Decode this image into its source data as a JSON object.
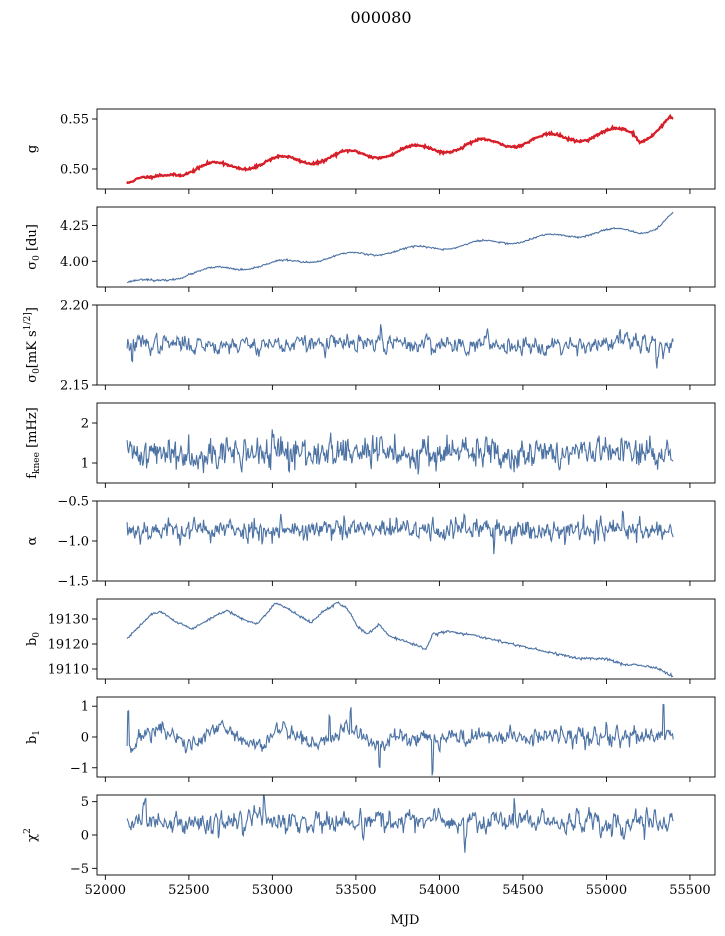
{
  "figure": {
    "title": "000080"
  },
  "chart_data": {
    "type": "line",
    "title": "000080",
    "xlabel": "MJD",
    "xlim": [
      51950,
      55650
    ],
    "x_ticks": [
      52000,
      52500,
      53000,
      53500,
      54000,
      54500,
      55000,
      55500
    ],
    "x_range": [
      52130,
      55400
    ],
    "colors": {
      "series": "#4c72a4",
      "highlight": "#ff0000"
    },
    "panels": [
      {
        "id": "g",
        "ylabel": "g",
        "ylim": [
          0.48,
          0.56
        ],
        "y_ticks": [
          0.5,
          0.55
        ],
        "y_tick_labels": [
          "0.50",
          "0.55"
        ],
        "model": "wave",
        "base": [
          [
            52100,
            0.487
          ],
          [
            52270,
            0.487
          ],
          [
            52400,
            0.498
          ],
          [
            53000,
            0.507
          ],
          [
            54000,
            0.521
          ],
          [
            55000,
            0.535
          ],
          [
            55150,
            0.537
          ],
          [
            55200,
            0.53
          ],
          [
            55380,
            0.55
          ],
          [
            55400,
            0.547
          ]
        ],
        "amplitude": 0.005,
        "period": 400,
        "phase": 52550,
        "noise": 0.0006,
        "seed": 11,
        "overlay": "red"
      },
      {
        "id": "s0",
        "ylabel": "σ0 [du]",
        "ylim": [
          3.82,
          4.38
        ],
        "y_ticks": [
          4.0,
          4.25
        ],
        "y_tick_labels": [
          "4.00",
          "4.25"
        ],
        "model": "wave",
        "base": [
          [
            52130,
            3.86
          ],
          [
            52300,
            3.85
          ],
          [
            52500,
            3.92
          ],
          [
            53000,
            3.98
          ],
          [
            53600,
            4.06
          ],
          [
            54500,
            4.15
          ],
          [
            55000,
            4.21
          ],
          [
            55200,
            4.21
          ],
          [
            55300,
            4.24
          ],
          [
            55400,
            4.33
          ]
        ],
        "amplitude": 0.02,
        "period": 400,
        "phase": 52550,
        "noise": 0.003,
        "seed": 23
      },
      {
        "id": "sw",
        "ylabel": "σ0[mK s^1/2]",
        "ylim": [
          2.15,
          2.2
        ],
        "y_ticks": [
          2.15,
          2.2
        ],
        "y_tick_labels": [
          "2.15",
          "2.20"
        ],
        "model": "noise",
        "mean": 2.1755,
        "noise": 0.0035,
        "smooth": 0.55,
        "seed": 37,
        "events": [
          [
            52160,
            -0.012
          ],
          [
            55300,
            -0.01
          ],
          [
            55080,
            0.01
          ],
          [
            53650,
            0.01
          ]
        ]
      },
      {
        "id": "fk",
        "ylabel": "fknee [mHz]",
        "ylim": [
          0.5,
          2.5
        ],
        "y_ticks": [
          1,
          2
        ],
        "y_tick_labels": [
          "1",
          "2"
        ],
        "model": "noise",
        "mean": 1.25,
        "noise": 0.16,
        "smooth": 0.25,
        "seed": 41,
        "events": [
          [
            53000,
            0.5
          ],
          [
            53600,
            0.45
          ],
          [
            54950,
            0.45
          ],
          [
            53100,
            -0.55
          ]
        ]
      },
      {
        "id": "al",
        "ylabel": "α",
        "ylim": [
          -1.5,
          -0.5
        ],
        "y_ticks": [
          -1.5,
          -1.0,
          -0.5
        ],
        "y_tick_labels": [
          "−1.5",
          "−1.0",
          "−0.5"
        ],
        "model": "noise",
        "mean": -0.86,
        "noise": 0.06,
        "smooth": 0.3,
        "seed": 53,
        "events": [
          [
            54150,
            0.22
          ],
          [
            55100,
            0.2
          ],
          [
            54330,
            -0.22
          ],
          [
            53050,
            0.15
          ]
        ]
      },
      {
        "id": "b0",
        "ylabel": "b0",
        "ylim": [
          19106,
          19138
        ],
        "y_ticks": [
          19110,
          19120,
          19130
        ],
        "y_tick_labels": [
          "19110",
          "19120",
          "19130"
        ],
        "model": "points",
        "points": [
          [
            52130,
            19122
          ],
          [
            52200,
            19127
          ],
          [
            52280,
            19132
          ],
          [
            52330,
            19133
          ],
          [
            52420,
            19129
          ],
          [
            52520,
            19126
          ],
          [
            52650,
            19131
          ],
          [
            52730,
            19133.5
          ],
          [
            52820,
            19130
          ],
          [
            52910,
            19128
          ],
          [
            53020,
            19136.5
          ],
          [
            53120,
            19133
          ],
          [
            53230,
            19128.5
          ],
          [
            53300,
            19133
          ],
          [
            53390,
            19136.5
          ],
          [
            53450,
            19134
          ],
          [
            53510,
            19127
          ],
          [
            53570,
            19124
          ],
          [
            53640,
            19128
          ],
          [
            53700,
            19123
          ],
          [
            53800,
            19121
          ],
          [
            53920,
            19118
          ],
          [
            53960,
            19124
          ],
          [
            54050,
            19125
          ],
          [
            54200,
            19123.5
          ],
          [
            54400,
            19120.5
          ],
          [
            54600,
            19117.5
          ],
          [
            54800,
            19114.5
          ],
          [
            55000,
            19114
          ],
          [
            55100,
            19112
          ],
          [
            55200,
            19111.5
          ],
          [
            55300,
            19110.5
          ],
          [
            55400,
            19107
          ]
        ],
        "noise": 0.25,
        "seed": 61
      },
      {
        "id": "b1",
        "ylabel": "b1",
        "ylim": [
          -1.3,
          1.3
        ],
        "y_ticks": [
          -1,
          0,
          1
        ],
        "y_tick_labels": [
          "−1",
          "0",
          "1"
        ],
        "model": "noise",
        "mean": 0.0,
        "noise": 0.14,
        "smooth": 0.4,
        "seed": 71,
        "wave": {
          "amplitude": 0.25,
          "period": 380,
          "phase": 52600,
          "until": 53700
        },
        "events": [
          [
            52135,
            1.15
          ],
          [
            53960,
            -1.1
          ],
          [
            53640,
            -0.8
          ],
          [
            55340,
            0.95
          ],
          [
            55000,
            0.55
          ],
          [
            53470,
            0.75
          ],
          [
            53340,
            0.7
          ]
        ]
      },
      {
        "id": "chi",
        "ylabel": "χ^2",
        "ylim": [
          -6,
          6
        ],
        "y_ticks": [
          -5,
          0,
          5
        ],
        "y_tick_labels": [
          "−5",
          "0",
          "5"
        ],
        "model": "noise",
        "mean": 2.0,
        "noise": 1.0,
        "smooth": 0.5,
        "seed": 83,
        "events": [
          [
            52680,
            -2.8
          ],
          [
            54150,
            -3.2
          ],
          [
            54450,
            3.6
          ],
          [
            55340,
            1.8
          ],
          [
            52950,
            2.6
          ]
        ]
      }
    ]
  }
}
